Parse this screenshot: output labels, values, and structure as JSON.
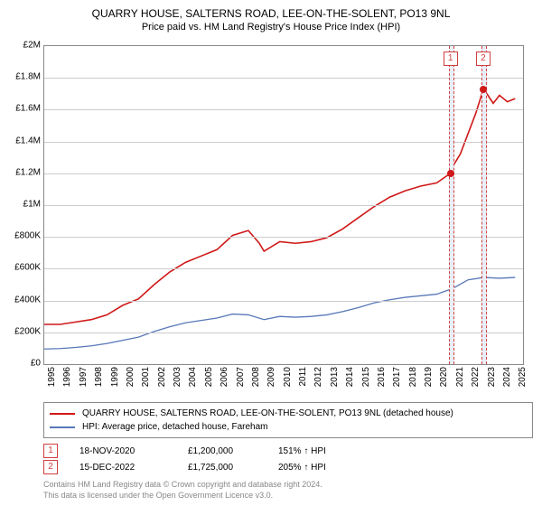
{
  "title": "QUARRY HOUSE, SALTERNS ROAD, LEE-ON-THE-SOLENT, PO13 9NL",
  "subtitle": "Price paid vs. HM Land Registry's House Price Index (HPI)",
  "chart": {
    "type": "line",
    "background_color": "#ffffff",
    "grid_color": "#cccccc",
    "border_color": "#888888",
    "xlim": [
      1995,
      2025.5
    ],
    "ylim": [
      0,
      2000000
    ],
    "ytick_step": 200000,
    "yticks": [
      {
        "v": 0,
        "label": "£0"
      },
      {
        "v": 200000,
        "label": "£200K"
      },
      {
        "v": 400000,
        "label": "£400K"
      },
      {
        "v": 600000,
        "label": "£600K"
      },
      {
        "v": 800000,
        "label": "£800K"
      },
      {
        "v": 1000000,
        "label": "£1M"
      },
      {
        "v": 1200000,
        "label": "£1.2M"
      },
      {
        "v": 1400000,
        "label": "£1.4M"
      },
      {
        "v": 1600000,
        "label": "£1.6M"
      },
      {
        "v": 1800000,
        "label": "£1.8M"
      },
      {
        "v": 2000000,
        "label": "£2M"
      }
    ],
    "xticks": [
      1995,
      1996,
      1997,
      1998,
      1999,
      2000,
      2001,
      2002,
      2003,
      2004,
      2005,
      2006,
      2007,
      2008,
      2009,
      2010,
      2011,
      2012,
      2013,
      2014,
      2015,
      2016,
      2017,
      2018,
      2019,
      2020,
      2021,
      2022,
      2023,
      2024,
      2025
    ],
    "tick_fontsize": 10,
    "series": [
      {
        "name": "property",
        "label": "QUARRY HOUSE, SALTERNS ROAD, LEE-ON-THE-SOLENT, PO13 9NL (detached house)",
        "color": "#d01818",
        "line_width": 1.6,
        "data": [
          [
            1995,
            250000
          ],
          [
            1996,
            250000
          ],
          [
            1997,
            265000
          ],
          [
            1998,
            280000
          ],
          [
            1999,
            310000
          ],
          [
            2000,
            370000
          ],
          [
            2001,
            410000
          ],
          [
            2002,
            500000
          ],
          [
            2003,
            580000
          ],
          [
            2004,
            640000
          ],
          [
            2005,
            680000
          ],
          [
            2006,
            720000
          ],
          [
            2007,
            810000
          ],
          [
            2008,
            840000
          ],
          [
            2008.7,
            760000
          ],
          [
            2009,
            710000
          ],
          [
            2010,
            770000
          ],
          [
            2011,
            760000
          ],
          [
            2012,
            770000
          ],
          [
            2013,
            795000
          ],
          [
            2014,
            850000
          ],
          [
            2015,
            920000
          ],
          [
            2016,
            990000
          ],
          [
            2017,
            1050000
          ],
          [
            2018,
            1090000
          ],
          [
            2019,
            1120000
          ],
          [
            2020,
            1140000
          ],
          [
            2020.88,
            1200000
          ],
          [
            2021,
            1240000
          ],
          [
            2021.5,
            1320000
          ],
          [
            2022,
            1450000
          ],
          [
            2022.5,
            1580000
          ],
          [
            2022.96,
            1725000
          ],
          [
            2023.2,
            1700000
          ],
          [
            2023.6,
            1640000
          ],
          [
            2024,
            1690000
          ],
          [
            2024.5,
            1650000
          ],
          [
            2025,
            1670000
          ]
        ]
      },
      {
        "name": "hpi",
        "label": "HPI: Average price, detached house, Fareham",
        "color": "#5878b8",
        "line_width": 1.3,
        "data": [
          [
            1995,
            95000
          ],
          [
            1996,
            98000
          ],
          [
            1997,
            105000
          ],
          [
            1998,
            115000
          ],
          [
            1999,
            130000
          ],
          [
            2000,
            150000
          ],
          [
            2001,
            170000
          ],
          [
            2002,
            205000
          ],
          [
            2003,
            235000
          ],
          [
            2004,
            260000
          ],
          [
            2005,
            275000
          ],
          [
            2006,
            290000
          ],
          [
            2007,
            315000
          ],
          [
            2008,
            310000
          ],
          [
            2009,
            280000
          ],
          [
            2010,
            300000
          ],
          [
            2011,
            295000
          ],
          [
            2012,
            300000
          ],
          [
            2013,
            310000
          ],
          [
            2014,
            330000
          ],
          [
            2015,
            355000
          ],
          [
            2016,
            385000
          ],
          [
            2017,
            405000
          ],
          [
            2018,
            420000
          ],
          [
            2019,
            430000
          ],
          [
            2020,
            440000
          ],
          [
            2021,
            475000
          ],
          [
            2022,
            530000
          ],
          [
            2023,
            545000
          ],
          [
            2024,
            540000
          ],
          [
            2025,
            545000
          ]
        ]
      }
    ],
    "sale_markers": [
      {
        "n": "1",
        "x": 2020.88,
        "y": 1200000,
        "band_width_years": 0.12,
        "dot_color": "#d01818"
      },
      {
        "n": "2",
        "x": 2022.96,
        "y": 1725000,
        "band_width_years": 0.12,
        "dot_color": "#d01818"
      }
    ],
    "marker_box_border": "#d04040",
    "marker_box_text": "#d04040",
    "band_fill": "#e8eef7"
  },
  "legend": {
    "border_color": "#888888",
    "fontsize": 10
  },
  "sales_rows": [
    {
      "n": "1",
      "date": "18-NOV-2020",
      "price": "£1,200,000",
      "pct": "151% ↑ HPI"
    },
    {
      "n": "2",
      "date": "15-DEC-2022",
      "price": "£1,725,000",
      "pct": "205% ↑ HPI"
    }
  ],
  "footnote_line1": "Contains HM Land Registry data © Crown copyright and database right 2024.",
  "footnote_line2": "This data is licensed under the Open Government Licence v3.0.",
  "footnote_color": "#888888"
}
